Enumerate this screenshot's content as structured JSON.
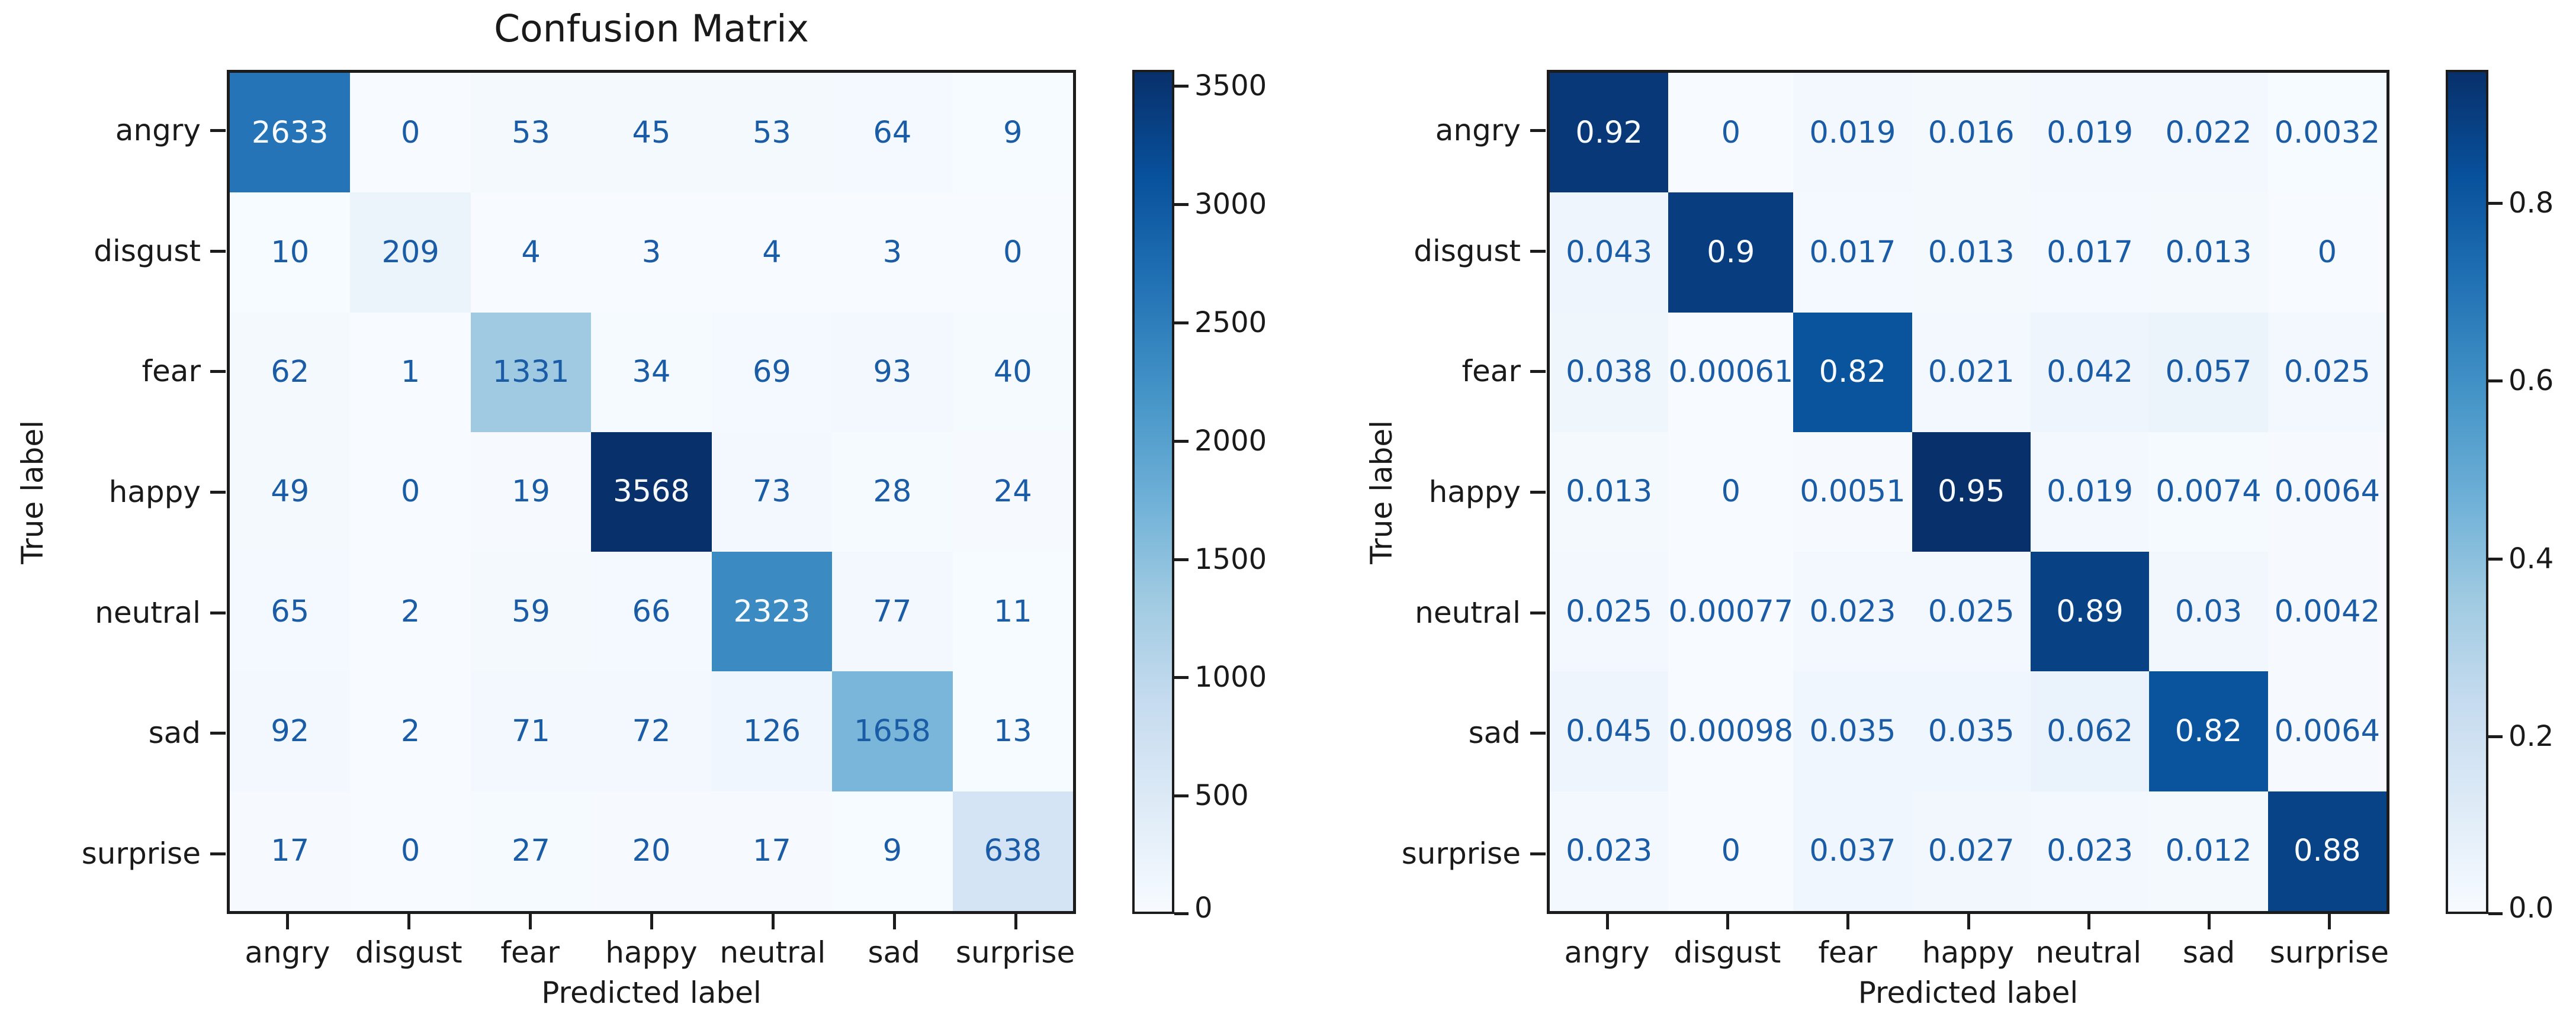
{
  "colors": {
    "cmap_low": "#f7fbff",
    "cmap_high": "#08306b",
    "cell_text_dark": "#1b5ca6",
    "cell_text_light": "#f7fbff",
    "frame": "#1c1c1c"
  },
  "chart_data": [
    {
      "type": "heatmap",
      "title": "Confusion Matrix",
      "xlabel": "Predicted label",
      "ylabel": "True label",
      "colormap": "Blues",
      "legend_position": "right-colorbar",
      "grid": false,
      "categories": [
        "angry",
        "disgust",
        "fear",
        "happy",
        "neutral",
        "sad",
        "surprise"
      ],
      "vmin": 0,
      "vmax": 3568,
      "values": [
        [
          2633,
          0,
          53,
          45,
          53,
          64,
          9
        ],
        [
          10,
          209,
          4,
          3,
          4,
          3,
          0
        ],
        [
          62,
          1,
          1331,
          34,
          69,
          93,
          40
        ],
        [
          49,
          0,
          19,
          3568,
          73,
          28,
          24
        ],
        [
          65,
          2,
          59,
          66,
          2323,
          77,
          11
        ],
        [
          92,
          2,
          71,
          72,
          126,
          1658,
          13
        ],
        [
          17,
          0,
          27,
          20,
          17,
          9,
          638
        ]
      ],
      "cell_labels": [
        [
          "2633",
          "0",
          "53",
          "45",
          "53",
          "64",
          "9"
        ],
        [
          "10",
          "209",
          "4",
          "3",
          "4",
          "3",
          "0"
        ],
        [
          "62",
          "1",
          "1331",
          "34",
          "69",
          "93",
          "40"
        ],
        [
          "49",
          "0",
          "19",
          "3568",
          "73",
          "28",
          "24"
        ],
        [
          "65",
          "2",
          "59",
          "66",
          "2323",
          "77",
          "11"
        ],
        [
          "92",
          "2",
          "71",
          "72",
          "126",
          "1658",
          "13"
        ],
        [
          "17",
          "0",
          "27",
          "20",
          "17",
          "9",
          "638"
        ]
      ],
      "colorbar_ticks": [
        "0",
        "500",
        "1000",
        "1500",
        "2000",
        "2500",
        "3000",
        "3500"
      ],
      "colorbar_tick_values": [
        0,
        500,
        1000,
        1500,
        2000,
        2500,
        3000,
        3500
      ]
    },
    {
      "type": "heatmap",
      "title": "",
      "xlabel": "Predicted label",
      "ylabel": "True label",
      "colormap": "Blues",
      "legend_position": "right-colorbar",
      "grid": false,
      "categories": [
        "angry",
        "disgust",
        "fear",
        "happy",
        "neutral",
        "sad",
        "surprise"
      ],
      "vmin": 0,
      "vmax": 0.95,
      "values": [
        [
          0.92,
          0,
          0.019,
          0.016,
          0.019,
          0.022,
          0.0032
        ],
        [
          0.043,
          0.9,
          0.017,
          0.013,
          0.017,
          0.013,
          0
        ],
        [
          0.038,
          0.00061,
          0.82,
          0.021,
          0.042,
          0.057,
          0.025
        ],
        [
          0.013,
          0,
          0.0051,
          0.95,
          0.019,
          0.0074,
          0.0064
        ],
        [
          0.025,
          0.00077,
          0.023,
          0.025,
          0.89,
          0.03,
          0.0042
        ],
        [
          0.045,
          0.00098,
          0.035,
          0.035,
          0.062,
          0.82,
          0.0064
        ],
        [
          0.023,
          0,
          0.037,
          0.027,
          0.023,
          0.012,
          0.88
        ]
      ],
      "cell_labels": [
        [
          "0.92",
          "0",
          "0.019",
          "0.016",
          "0.019",
          "0.022",
          "0.0032"
        ],
        [
          "0.043",
          "0.9",
          "0.017",
          "0.013",
          "0.017",
          "0.013",
          "0"
        ],
        [
          "0.038",
          "0.00061",
          "0.82",
          "0.021",
          "0.042",
          "0.057",
          "0.025"
        ],
        [
          "0.013",
          "0",
          "0.0051",
          "0.95",
          "0.019",
          "0.0074",
          "0.0064"
        ],
        [
          "0.025",
          "0.00077",
          "0.023",
          "0.025",
          "0.89",
          "0.03",
          "0.0042"
        ],
        [
          "0.045",
          "0.00098",
          "0.035",
          "0.035",
          "0.062",
          "0.82",
          "0.0064"
        ],
        [
          "0.023",
          "0",
          "0.037",
          "0.027",
          "0.023",
          "0.012",
          "0.88"
        ]
      ],
      "colorbar_ticks": [
        "0.0",
        "0.2",
        "0.4",
        "0.6",
        "0.8"
      ],
      "colorbar_tick_values": [
        0,
        0.2,
        0.4,
        0.6,
        0.8
      ]
    }
  ]
}
